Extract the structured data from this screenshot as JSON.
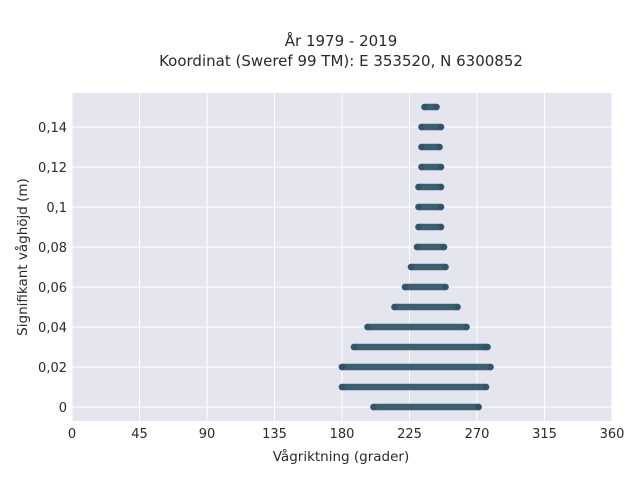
{
  "chart_data": {
    "type": "scatter",
    "title": [
      "År 1979 - 2019",
      "Koordinat (Sweref 99 TM): E 353520, N 6300852"
    ],
    "xlabel": "Vågriktning (grader)",
    "ylabel": "Signifikant våghöjd (m)",
    "xlim": [
      0,
      360
    ],
    "ylim": [
      -0.007,
      0.157
    ],
    "xticks": [
      0,
      45,
      90,
      135,
      180,
      225,
      270,
      315,
      360
    ],
    "xtick_labels": [
      "0",
      "45",
      "90",
      "135",
      "180",
      "225",
      "270",
      "315",
      "360"
    ],
    "yticks": [
      0,
      0.02,
      0.04,
      0.06,
      0.08,
      0.1,
      0.12,
      0.14
    ],
    "ytick_labels": [
      "0",
      "0,02",
      "0,04",
      "0,06",
      "0,08",
      "0,1",
      "0,12",
      "0,14"
    ],
    "grid": true,
    "background": "#e5e5ef",
    "marker_color": "#2e5266",
    "bands": [
      {
        "y": 0.0,
        "x_min": 201,
        "x_max": 271
      },
      {
        "y": 0.01,
        "x_min": 180,
        "x_max": 276
      },
      {
        "y": 0.02,
        "x_min": 180,
        "x_max": 279
      },
      {
        "y": 0.03,
        "x_min": 188,
        "x_max": 277
      },
      {
        "y": 0.04,
        "x_min": 197,
        "x_max": 263
      },
      {
        "y": 0.05,
        "x_min": 215,
        "x_max": 257
      },
      {
        "y": 0.06,
        "x_min": 222,
        "x_max": 249
      },
      {
        "y": 0.07,
        "x_min": 226,
        "x_max": 249
      },
      {
        "y": 0.08,
        "x_min": 230,
        "x_max": 248
      },
      {
        "y": 0.09,
        "x_min": 231,
        "x_max": 246
      },
      {
        "y": 0.1,
        "x_min": 231,
        "x_max": 246
      },
      {
        "y": 0.11,
        "x_min": 231,
        "x_max": 246
      },
      {
        "y": 0.12,
        "x_min": 233,
        "x_max": 246
      },
      {
        "y": 0.13,
        "x_min": 233,
        "x_max": 245
      },
      {
        "y": 0.14,
        "x_min": 233,
        "x_max": 246
      },
      {
        "y": 0.15,
        "x_min": 235,
        "x_max": 243
      }
    ],
    "sparse_points": [
      {
        "x": 180,
        "y": 0.02
      },
      {
        "x": 275,
        "y": 0.03
      },
      {
        "x": 271,
        "y": 0.0
      }
    ]
  }
}
